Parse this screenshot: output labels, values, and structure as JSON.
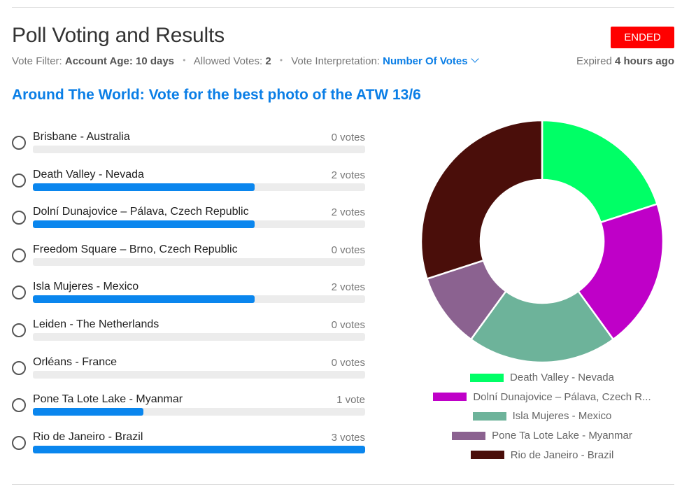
{
  "header": {
    "title": "Poll Voting and Results",
    "status": "ENDED",
    "vote_filter_label": "Vote Filter:",
    "vote_filter_value": "Account Age: 10 days",
    "allowed_votes_label": "Allowed Votes:",
    "allowed_votes_value": "2",
    "interpretation_label": "Vote Interpretation:",
    "interpretation_value": "Number Of Votes",
    "expired_label": "Expired",
    "expired_value": "4 hours ago"
  },
  "poll": {
    "question": "Around The World: Vote for the best photo of the ATW 13/6",
    "options": [
      {
        "label": "Brisbane - Australia",
        "votes_text": "0 votes",
        "votes": 0
      },
      {
        "label": "Death Valley - Nevada",
        "votes_text": "2 votes",
        "votes": 2
      },
      {
        "label": "Dolní Dunajovice – Pálava, Czech Republic",
        "votes_text": "2 votes",
        "votes": 2
      },
      {
        "label": "Freedom Square – Brno, Czech Republic",
        "votes_text": "0 votes",
        "votes": 0
      },
      {
        "label": "Isla Mujeres - Mexico",
        "votes_text": "2 votes",
        "votes": 2
      },
      {
        "label": "Leiden - The Netherlands",
        "votes_text": "0 votes",
        "votes": 0
      },
      {
        "label": "Orléans - France",
        "votes_text": "0 votes",
        "votes": 0
      },
      {
        "label": "Pone Ta Lote Lake - Myanmar",
        "votes_text": "1 vote",
        "votes": 1
      },
      {
        "label": "Rio de Janeiro - Brazil",
        "votes_text": "3 votes",
        "votes": 3
      }
    ]
  },
  "chart_data": {
    "type": "pie",
    "categories": [
      "Death Valley - Nevada",
      "Dolní Dunajovice – Pálava, Czech R...",
      "Isla Mujeres - Mexico",
      "Pone Ta Lote Lake - Myanmar",
      "Rio de Janeiro - Brazil"
    ],
    "values": [
      2,
      2,
      2,
      1,
      3
    ],
    "colors": [
      "#00ff66",
      "#bf00c8",
      "#6db39a",
      "#8b6290",
      "#4a0e0a"
    ],
    "legend_position": "bottom"
  }
}
